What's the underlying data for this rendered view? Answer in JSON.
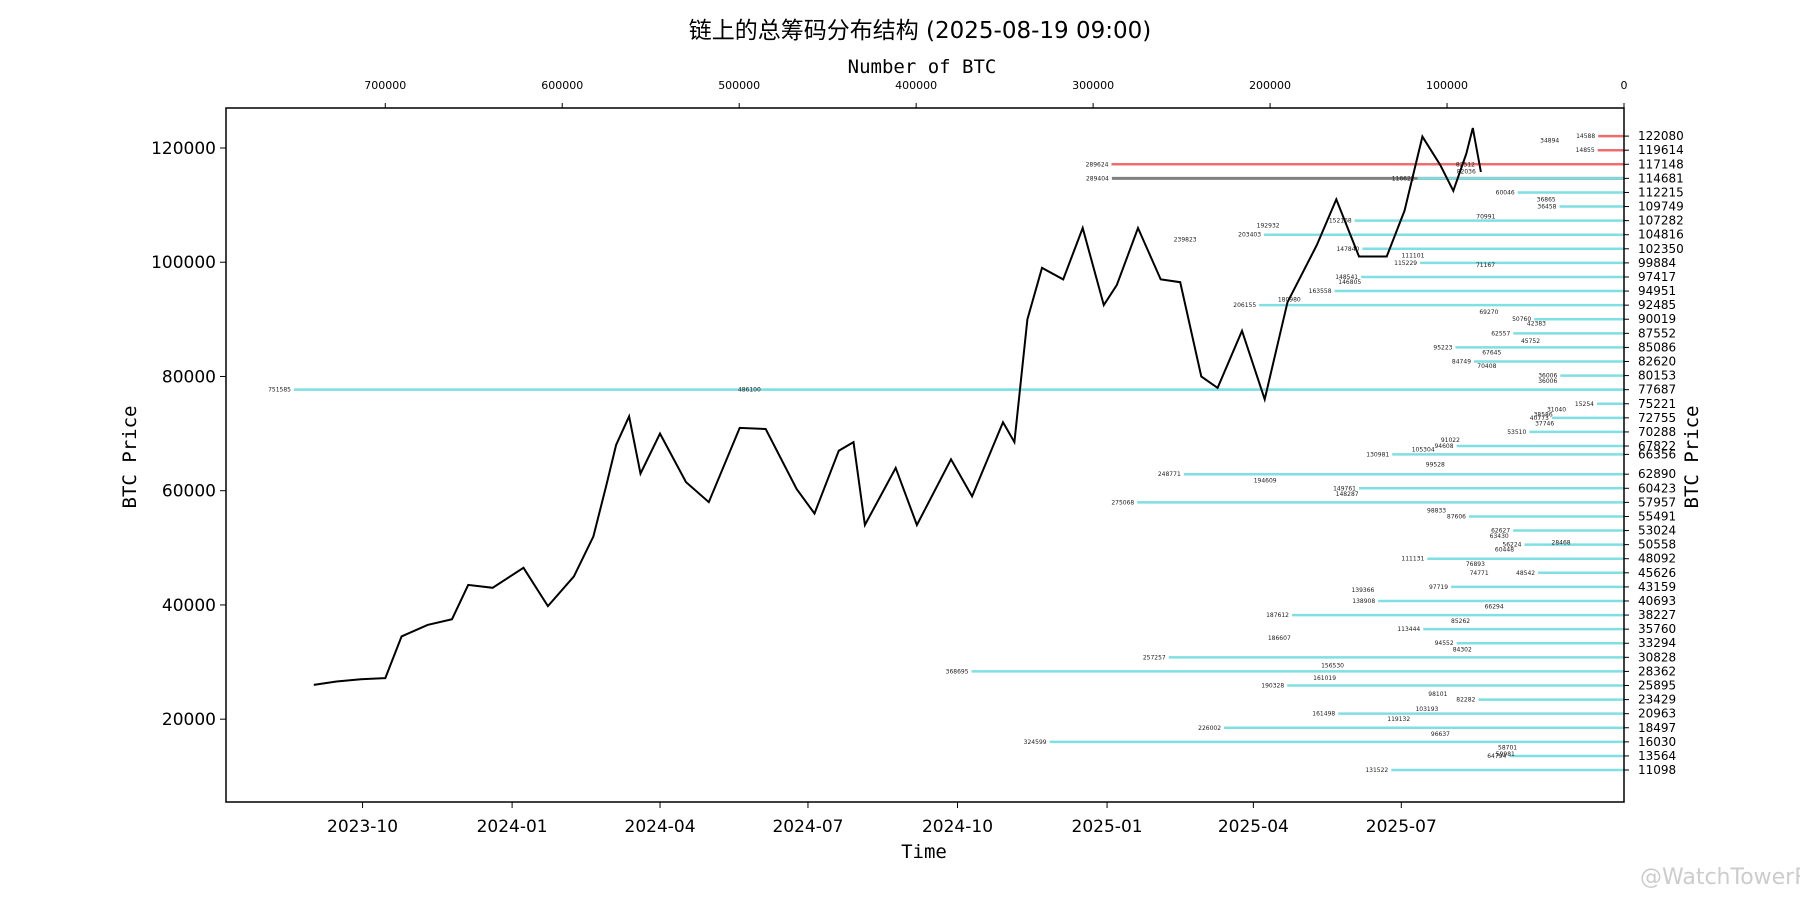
{
  "watermark": "@WatchTowerR",
  "chart_data": {
    "type": "line+horizontal-bar",
    "title": "链上的总筹码分布结构 (2025-08-19 09:00)",
    "xlabel": "Time",
    "ylabel": "BTC Price",
    "ylabel_right": "BTC Price",
    "x2label": "Number of BTC",
    "time_range": [
      "2023-07-09",
      "2025-11-15"
    ],
    "x_ticks": [
      "2023-10",
      "2024-01",
      "2024-04",
      "2024-07",
      "2024-10",
      "2025-01",
      "2025-04",
      "2025-07"
    ],
    "ylim": [
      5500,
      127000
    ],
    "y_ticks": [
      20000,
      40000,
      60000,
      80000,
      100000,
      120000
    ],
    "x2lim": [
      790000,
      0
    ],
    "x2_ticks": [
      700000,
      600000,
      500000,
      400000,
      300000,
      200000,
      100000,
      0
    ],
    "colors": {
      "line": "#000000",
      "above_price": "#f06c6c",
      "current": "#808080",
      "below_price": "#7fdfe2"
    },
    "current_price": 115800,
    "price_series": [
      [
        "2023-09-01",
        26000
      ],
      [
        "2023-09-15",
        26600
      ],
      [
        "2023-09-30",
        27000
      ],
      [
        "2023-10-15",
        27200
      ],
      [
        "2023-10-25",
        34500
      ],
      [
        "2023-11-10",
        36500
      ],
      [
        "2023-11-25",
        37500
      ],
      [
        "2023-12-05",
        43500
      ],
      [
        "2023-12-20",
        43000
      ],
      [
        "2024-01-08",
        46500
      ],
      [
        "2024-01-23",
        39800
      ],
      [
        "2024-02-08",
        45000
      ],
      [
        "2024-02-20",
        52000
      ],
      [
        "2024-02-28",
        61000
      ],
      [
        "2024-03-05",
        68000
      ],
      [
        "2024-03-13",
        73000
      ],
      [
        "2024-03-20",
        63000
      ],
      [
        "2024-04-01",
        70000
      ],
      [
        "2024-04-17",
        61500
      ],
      [
        "2024-05-01",
        58000
      ],
      [
        "2024-05-20",
        71000
      ],
      [
        "2024-06-05",
        70800
      ],
      [
        "2024-06-24",
        60300
      ],
      [
        "2024-07-05",
        56000
      ],
      [
        "2024-07-20",
        67000
      ],
      [
        "2024-07-29",
        68500
      ],
      [
        "2024-08-05",
        54000
      ],
      [
        "2024-08-24",
        64000
      ],
      [
        "2024-09-06",
        54000
      ],
      [
        "2024-09-27",
        65500
      ],
      [
        "2024-10-10",
        59000
      ],
      [
        "2024-10-29",
        72000
      ],
      [
        "2024-11-05",
        68500
      ],
      [
        "2024-11-13",
        90000
      ],
      [
        "2024-11-22",
        99000
      ],
      [
        "2024-12-05",
        97000
      ],
      [
        "2024-12-17",
        106000
      ],
      [
        "2024-12-30",
        92500
      ],
      [
        "2025-01-07",
        96000
      ],
      [
        "2025-01-20",
        106000
      ],
      [
        "2025-02-03",
        97000
      ],
      [
        "2025-02-15",
        96500
      ],
      [
        "2025-02-28",
        80000
      ],
      [
        "2025-03-10",
        78000
      ],
      [
        "2025-03-25",
        88000
      ],
      [
        "2025-04-08",
        76000
      ],
      [
        "2025-04-22",
        93000
      ],
      [
        "2025-05-10",
        103000
      ],
      [
        "2025-05-22",
        111000
      ],
      [
        "2025-06-05",
        101000
      ],
      [
        "2025-06-22",
        101000
      ],
      [
        "2025-07-03",
        109000
      ],
      [
        "2025-07-14",
        122000
      ],
      [
        "2025-07-25",
        117000
      ],
      [
        "2025-08-02",
        112500
      ],
      [
        "2025-08-10",
        119000
      ],
      [
        "2025-08-14",
        123500
      ],
      [
        "2025-08-19",
        115800
      ]
    ],
    "distribution": [
      {
        "price": 122080,
        "btc": 14588,
        "side": "above"
      },
      {
        "price": 119614,
        "btc": 14855,
        "side": "above"
      },
      {
        "price": 117148,
        "btc": 82512,
        "side": "above"
      },
      {
        "price": 117148,
        "btc": 289624,
        "side": "above"
      },
      {
        "price": 114681,
        "btc": 289404,
        "side": "current"
      },
      {
        "price": 114681,
        "btc": 116622,
        "side": "below"
      },
      {
        "price": 112215,
        "btc": 60046,
        "side": "below"
      },
      {
        "price": 109749,
        "btc": 36458,
        "side": "below"
      },
      {
        "price": 107282,
        "btc": 152168,
        "side": "below"
      },
      {
        "price": 104816,
        "btc": 203403,
        "side": "below"
      },
      {
        "price": 102350,
        "btc": 147840,
        "side": "below"
      },
      {
        "price": 99884,
        "btc": 115229,
        "side": "below"
      },
      {
        "price": 97417,
        "btc": 148541,
        "side": "below"
      },
      {
        "price": 94951,
        "btc": 163558,
        "side": "below"
      },
      {
        "price": 92485,
        "btc": 206155,
        "side": "below"
      },
      {
        "price": 90019,
        "btc": 50760,
        "side": "below"
      },
      {
        "price": 87552,
        "btc": 62557,
        "side": "below"
      },
      {
        "price": 85086,
        "btc": 95223,
        "side": "below"
      },
      {
        "price": 82620,
        "btc": 84749,
        "side": "below"
      },
      {
        "price": 80153,
        "btc": 36006,
        "side": "below"
      },
      {
        "price": 77687,
        "btc": 486100,
        "side": "below"
      },
      {
        "price": 77687,
        "btc": 751585,
        "side": "below"
      },
      {
        "price": 75221,
        "btc": 15254,
        "side": "below"
      },
      {
        "price": 72755,
        "btc": 40773,
        "side": "below"
      },
      {
        "price": 70288,
        "btc": 53510,
        "side": "below"
      },
      {
        "price": 67822,
        "btc": 94608,
        "side": "below"
      },
      {
        "price": 66356,
        "btc": 130981,
        "side": "below"
      },
      {
        "price": 62890,
        "btc": 248771,
        "side": "below"
      },
      {
        "price": 60423,
        "btc": 149761,
        "side": "below"
      },
      {
        "price": 57957,
        "btc": 275068,
        "side": "below"
      },
      {
        "price": 55491,
        "btc": 87606,
        "side": "below"
      },
      {
        "price": 53024,
        "btc": 62627,
        "side": "below"
      },
      {
        "price": 50558,
        "btc": 56224,
        "side": "below"
      },
      {
        "price": 48092,
        "btc": 111131,
        "side": "below"
      },
      {
        "price": 45626,
        "btc": 48542,
        "side": "below"
      },
      {
        "price": 43159,
        "btc": 97719,
        "side": "below"
      },
      {
        "price": 40693,
        "btc": 138908,
        "side": "below"
      },
      {
        "price": 38227,
        "btc": 187612,
        "side": "below"
      },
      {
        "price": 35760,
        "btc": 113444,
        "side": "below"
      },
      {
        "price": 33294,
        "btc": 94552,
        "side": "below"
      },
      {
        "price": 30828,
        "btc": 257257,
        "side": "below"
      },
      {
        "price": 28362,
        "btc": 368695,
        "side": "below"
      },
      {
        "price": 25895,
        "btc": 190328,
        "side": "below"
      },
      {
        "price": 23429,
        "btc": 82282,
        "side": "below"
      },
      {
        "price": 20963,
        "btc": 161498,
        "side": "below"
      },
      {
        "price": 18497,
        "btc": 226002,
        "side": "below"
      },
      {
        "price": 16030,
        "btc": 324599,
        "side": "below"
      },
      {
        "price": 13564,
        "btc": 64794,
        "side": "below"
      },
      {
        "price": 11098,
        "btc": 131522,
        "side": "below"
      }
    ],
    "right_ticks": [
      "122080",
      "119614",
      "117148",
      "114681",
      "112215",
      "109749",
      "107282",
      "104816",
      "102350",
      "99884",
      "97417",
      "94951",
      "92485",
      "90019",
      "87552",
      "85086",
      "82620",
      "80153",
      "77687",
      "75221",
      "72755",
      "70288",
      "67822",
      "66356",
      "62890",
      "60423",
      "57957",
      "55491",
      "53024",
      "50558",
      "48092",
      "45626",
      "43159",
      "40693",
      "38227",
      "35760",
      "33294",
      "30828",
      "28362",
      "25895",
      "23429",
      "20963",
      "18497",
      "16030",
      "13564",
      "11098"
    ],
    "extra_labels": [
      {
        "price": 121300,
        "btc": 34894
      },
      {
        "price": 115900,
        "btc": 82036
      },
      {
        "price": 111000,
        "btc": 36865
      },
      {
        "price": 108000,
        "btc": 70991
      },
      {
        "price": 106400,
        "btc": 192932
      },
      {
        "price": 104000,
        "btc": 239823
      },
      {
        "price": 101200,
        "btc": 111101
      },
      {
        "price": 99500,
        "btc": 71167
      },
      {
        "price": 96500,
        "btc": 146805
      },
      {
        "price": 93500,
        "btc": 180980
      },
      {
        "price": 91300,
        "btc": 69270
      },
      {
        "price": 89300,
        "btc": 42383
      },
      {
        "price": 86200,
        "btc": 45752
      },
      {
        "price": 84200,
        "btc": 67645
      },
      {
        "price": 81800,
        "btc": 70408
      },
      {
        "price": 79200,
        "btc": 36006
      },
      {
        "price": 74200,
        "btc": 31040
      },
      {
        "price": 73300,
        "btc": 38586
      },
      {
        "price": 71800,
        "btc": 37746
      },
      {
        "price": 68900,
        "btc": 91022
      },
      {
        "price": 67200,
        "btc": 105304
      },
      {
        "price": 64600,
        "btc": 99528
      },
      {
        "price": 61800,
        "btc": 194609
      },
      {
        "price": 59400,
        "btc": 148287
      },
      {
        "price": 56500,
        "btc": 98833
      },
      {
        "price": 52100,
        "btc": 63430
      },
      {
        "price": 50900,
        "btc": 28468
      },
      {
        "price": 49700,
        "btc": 60448
      },
      {
        "price": 47200,
        "btc": 76893
      },
      {
        "price": 45600,
        "btc": 74771
      },
      {
        "price": 42600,
        "btc": 139366
      },
      {
        "price": 39700,
        "btc": 66294
      },
      {
        "price": 37200,
        "btc": 85262
      },
      {
        "price": 34200,
        "btc": 186607
      },
      {
        "price": 32200,
        "btc": 84302
      },
      {
        "price": 29400,
        "btc": 156530
      },
      {
        "price": 27200,
        "btc": 161019
      },
      {
        "price": 24400,
        "btc": 98101
      },
      {
        "price": 21800,
        "btc": 103193
      },
      {
        "price": 20000,
        "btc": 119132
      },
      {
        "price": 17400,
        "btc": 96637
      },
      {
        "price": 15000,
        "btc": 58701
      },
      {
        "price": 13900,
        "btc": 59981
      }
    ]
  }
}
